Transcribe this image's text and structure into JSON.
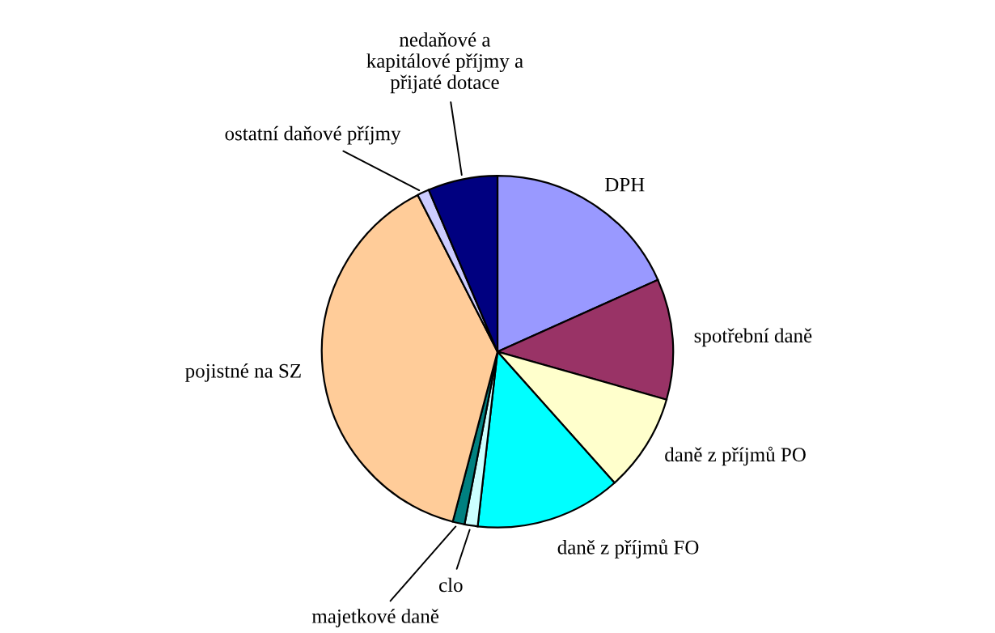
{
  "chart_data": {
    "type": "pie",
    "categories": [
      "DPH",
      "spotřební daně",
      "daně z příjmů PO",
      "daně z příjmů FO",
      "clo",
      "majetkové daně",
      "pojistné na SZ",
      "ostatní daňové příjmy",
      "nedaňové a kapitálové příjmy a přijaté dotace"
    ],
    "values": [
      18.3,
      11.1,
      9.0,
      13.4,
      1.2,
      1.1,
      38.4,
      1.1,
      6.4
    ],
    "colors": [
      "#9999ff",
      "#993366",
      "#ffffcc",
      "#00ffff",
      "#ccffff",
      "#008080",
      "#ffcc99",
      "#ccccff",
      "#000080"
    ]
  }
}
